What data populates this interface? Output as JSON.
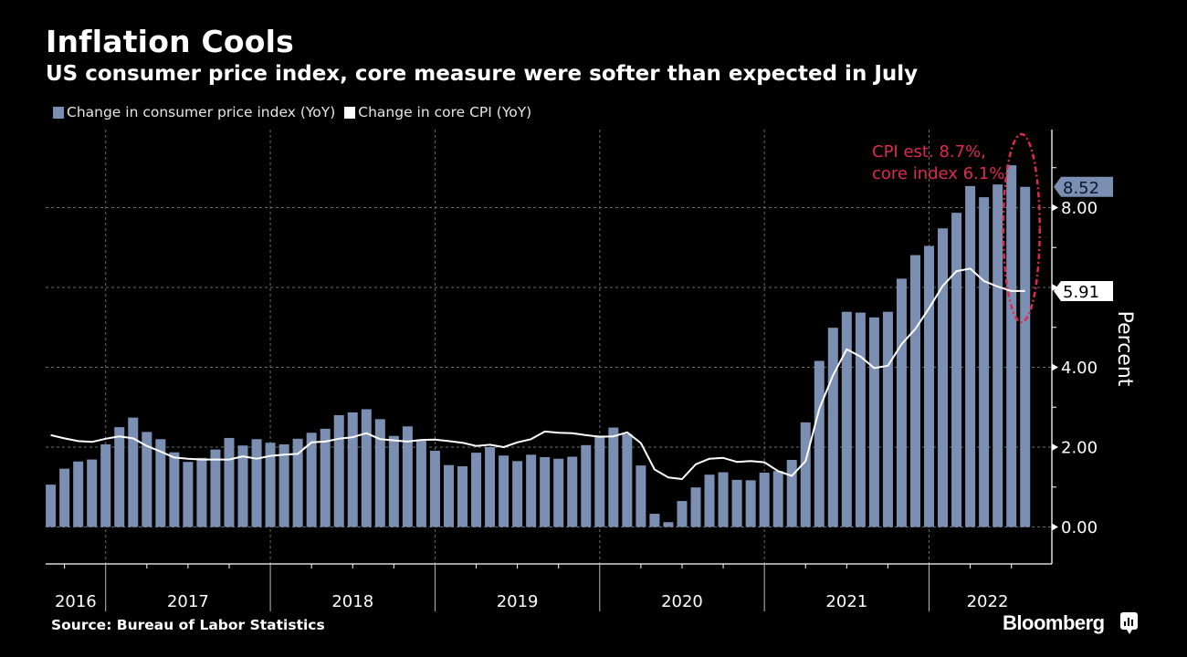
{
  "header": {
    "title": "Inflation Cools",
    "subtitle": "US consumer price index, core measure were softer than expected in July"
  },
  "footer": {
    "source": "Source: Bureau of Labor Statistics",
    "brand": "Bloomberg"
  },
  "colors": {
    "background": "#000000",
    "cpi_bar": "#7b8fb3",
    "core_line": "#ffffff",
    "annotation": "#e0294f",
    "grid": "#6b6b6b"
  },
  "chart_data": {
    "type": "bar",
    "title": "Inflation Cools",
    "subtitle": "US consumer price index, core measure were softer than expected in July",
    "xlabel": "",
    "ylabel": "Percent",
    "ylim": [
      -0.9,
      9.95
    ],
    "yticks": [
      0,
      2,
      4,
      6,
      8
    ],
    "ytick_labels": [
      "0.00",
      "2.00",
      "4.00",
      "",
      "8.00"
    ],
    "grid": true,
    "legend_position": "top-left",
    "start_month": "2016-08",
    "x_year_labels": [
      "2016",
      "2017",
      "2018",
      "2019",
      "2020",
      "2021",
      "2022"
    ],
    "series": [
      {
        "name": "Change in consumer price index (YoY)",
        "type": "bar",
        "last_value_label": "8.52",
        "values": [
          1.06,
          1.46,
          1.64,
          1.69,
          2.07,
          2.5,
          2.74,
          2.38,
          2.2,
          1.87,
          1.63,
          1.73,
          1.94,
          2.23,
          2.04,
          2.2,
          2.11,
          2.07,
          2.21,
          2.36,
          2.46,
          2.8,
          2.87,
          2.95,
          2.7,
          2.28,
          2.52,
          2.18,
          1.91,
          1.55,
          1.52,
          1.86,
          2.0,
          1.79,
          1.65,
          1.81,
          1.75,
          1.71,
          1.76,
          2.05,
          2.29,
          2.49,
          2.33,
          1.54,
          0.33,
          0.12,
          0.65,
          0.99,
          1.31,
          1.37,
          1.18,
          1.17,
          1.36,
          1.4,
          1.68,
          2.62,
          4.16,
          4.99,
          5.39,
          5.37,
          5.25,
          5.39,
          6.22,
          6.81,
          7.04,
          7.48,
          7.87,
          8.54,
          8.26,
          8.58,
          9.06,
          8.52
        ]
      },
      {
        "name": "Change in core CPI (YoY)",
        "type": "line",
        "last_value_label": "5.91",
        "values": [
          2.3,
          2.22,
          2.15,
          2.13,
          2.21,
          2.27,
          2.22,
          2.03,
          1.89,
          1.74,
          1.71,
          1.69,
          1.69,
          1.69,
          1.77,
          1.71,
          1.78,
          1.81,
          1.83,
          2.12,
          2.14,
          2.21,
          2.25,
          2.35,
          2.2,
          2.17,
          2.14,
          2.18,
          2.19,
          2.15,
          2.11,
          2.03,
          2.06,
          2.0,
          2.12,
          2.2,
          2.39,
          2.36,
          2.35,
          2.3,
          2.26,
          2.27,
          2.37,
          2.1,
          1.44,
          1.24,
          1.2,
          1.57,
          1.71,
          1.73,
          1.63,
          1.65,
          1.62,
          1.4,
          1.28,
          1.65,
          2.96,
          3.8,
          4.45,
          4.27,
          3.98,
          4.04,
          4.58,
          4.96,
          5.48,
          6.04,
          6.41,
          6.47,
          6.16,
          6.02,
          5.91,
          5.91
        ]
      }
    ],
    "annotation": {
      "lines": [
        "CPI est. 8.7%,",
        "core index 6.1%"
      ],
      "highlight": "dashed ellipse around latest data point (July 2022)"
    }
  }
}
